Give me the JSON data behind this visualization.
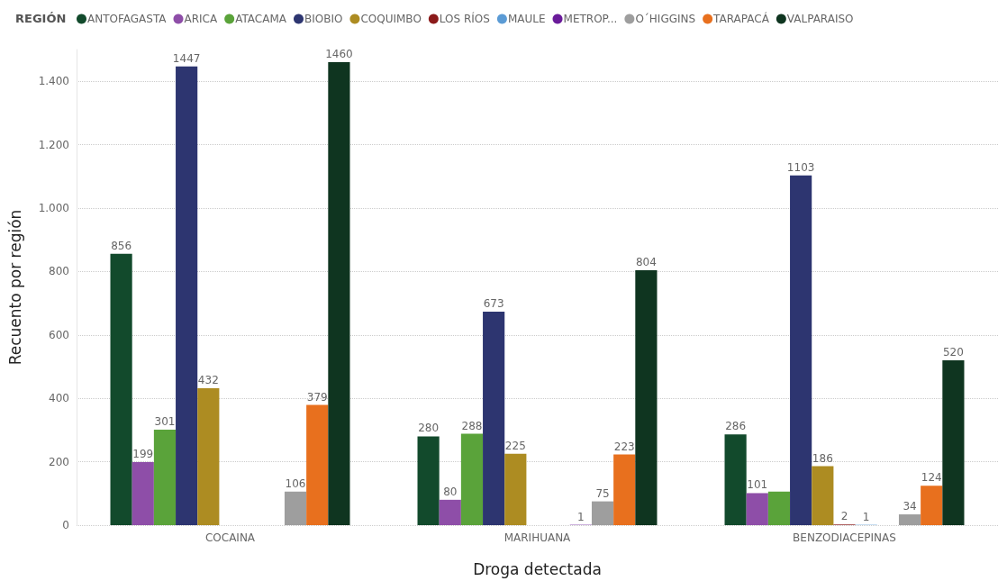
{
  "chart_data": {
    "type": "bar",
    "legend_title": "REGIÓN",
    "xlabel": "Droga detectada",
    "ylabel": "Recuento por región",
    "categories": [
      "COCAINA",
      "MARIHUANA",
      "BENZODIACEPINAS"
    ],
    "ylim": [
      0,
      1500
    ],
    "yticks": [
      0,
      200,
      400,
      600,
      800,
      {
        "value": 1000,
        "label": "1.000"
      },
      {
        "value": 1200,
        "label": "1.200"
      },
      {
        "value": 1400,
        "label": "1.400"
      }
    ],
    "grid": "y",
    "legend": "top left",
    "series": [
      {
        "name": "ANTOFAGASTA",
        "color": "#124a2c",
        "values": [
          856,
          280,
          286
        ],
        "value_labels": [
          "856",
          "280",
          "286"
        ]
      },
      {
        "name": "ARICA",
        "color": "#8e4ea8",
        "values": [
          199,
          80,
          101
        ],
        "value_labels": [
          "199",
          "80",
          "101"
        ]
      },
      {
        "name": "ATACAMA",
        "color": "#5aa33a",
        "values": [
          301,
          288,
          106
        ],
        "value_labels": [
          "301",
          "288",
          null
        ]
      },
      {
        "name": "BIOBIO",
        "color": "#2d3570",
        "values": [
          1447,
          673,
          1103
        ],
        "value_labels": [
          "1447",
          "673",
          "1103"
        ]
      },
      {
        "name": "COQUIMBO",
        "color": "#ad8c22",
        "values": [
          432,
          225,
          186
        ],
        "value_labels": [
          "432",
          "225",
          "186"
        ]
      },
      {
        "name": "LOS RÍOS",
        "color": "#8b1a1a",
        "values": [
          null,
          null,
          2
        ],
        "value_labels": [
          null,
          null,
          "2"
        ]
      },
      {
        "name": "MAULE",
        "color": "#5b9bd5",
        "values": [
          null,
          null,
          1
        ],
        "value_labels": [
          null,
          null,
          "1"
        ]
      },
      {
        "name": "METROP...",
        "color": "#6a1b9a",
        "values": [
          null,
          1,
          null
        ],
        "value_labels": [
          null,
          "1",
          null
        ]
      },
      {
        "name": "O´HIGGINS",
        "color": "#9e9e9e",
        "values": [
          106,
          75,
          34
        ],
        "value_labels": [
          "106",
          "75",
          "34"
        ]
      },
      {
        "name": "TARAPACÁ",
        "color": "#e8701e",
        "values": [
          379,
          223,
          124
        ],
        "value_labels": [
          "379",
          "223",
          "124"
        ]
      },
      {
        "name": "VALPARAISO",
        "color": "#0f3520",
        "values": [
          1460,
          804,
          520
        ],
        "value_labels": [
          "1460",
          "804",
          "520"
        ]
      }
    ]
  }
}
